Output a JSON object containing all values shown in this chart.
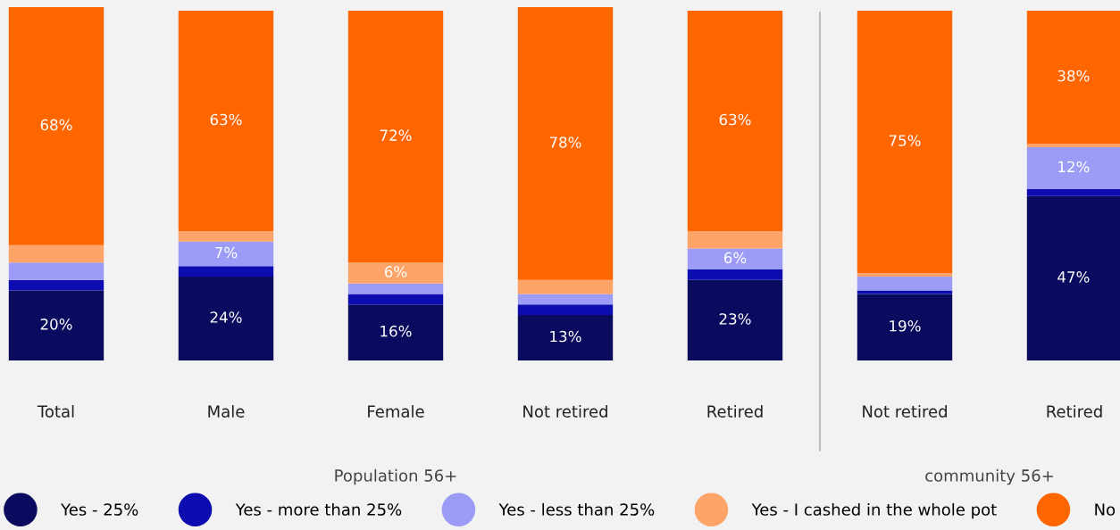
{
  "chart_data": {
    "type": "bar",
    "stacked": true,
    "categories": [
      "Total",
      "Male",
      "Female",
      "Not retired",
      "Retired",
      "Not retired",
      "Retired"
    ],
    "series": [
      {
        "name": "Yes - 25%",
        "color": "#0a0a5e",
        "values": [
          20,
          24,
          16,
          13,
          23,
          19,
          47
        ],
        "value_labels": [
          "20%",
          "24%",
          "16%",
          "13%",
          "23%",
          "19%",
          "47%"
        ]
      },
      {
        "name": "Yes - more than 25%",
        "color": "#0c0cb0",
        "values": [
          3,
          3,
          3,
          3,
          3,
          1,
          2
        ],
        "value_labels": [
          null,
          null,
          null,
          null,
          null,
          null,
          null
        ]
      },
      {
        "name": "Yes - less than 25%",
        "color": "#9c9cf7",
        "values": [
          5,
          7,
          3,
          3,
          6,
          4,
          12
        ],
        "value_labels": [
          null,
          "7%",
          null,
          null,
          "6%",
          null,
          "12%"
        ]
      },
      {
        "name": "Yes - I cashed in the whole pot",
        "color": "#ffa468",
        "values": [
          5,
          3,
          6,
          4,
          5,
          1,
          1
        ],
        "value_labels": [
          null,
          null,
          "6%",
          null,
          null,
          null,
          null
        ]
      },
      {
        "name": "No",
        "color": "#ff6600",
        "values": [
          68,
          63,
          72,
          78,
          63,
          75,
          38
        ],
        "value_labels": [
          "68%",
          "63%",
          "72%",
          "78%",
          "63%",
          "75%",
          "38%"
        ]
      }
    ],
    "annotations": [
      "Population 56+",
      "community 56+"
    ],
    "legend": "bottom",
    "tick_labels": "x",
    "grid": false
  }
}
